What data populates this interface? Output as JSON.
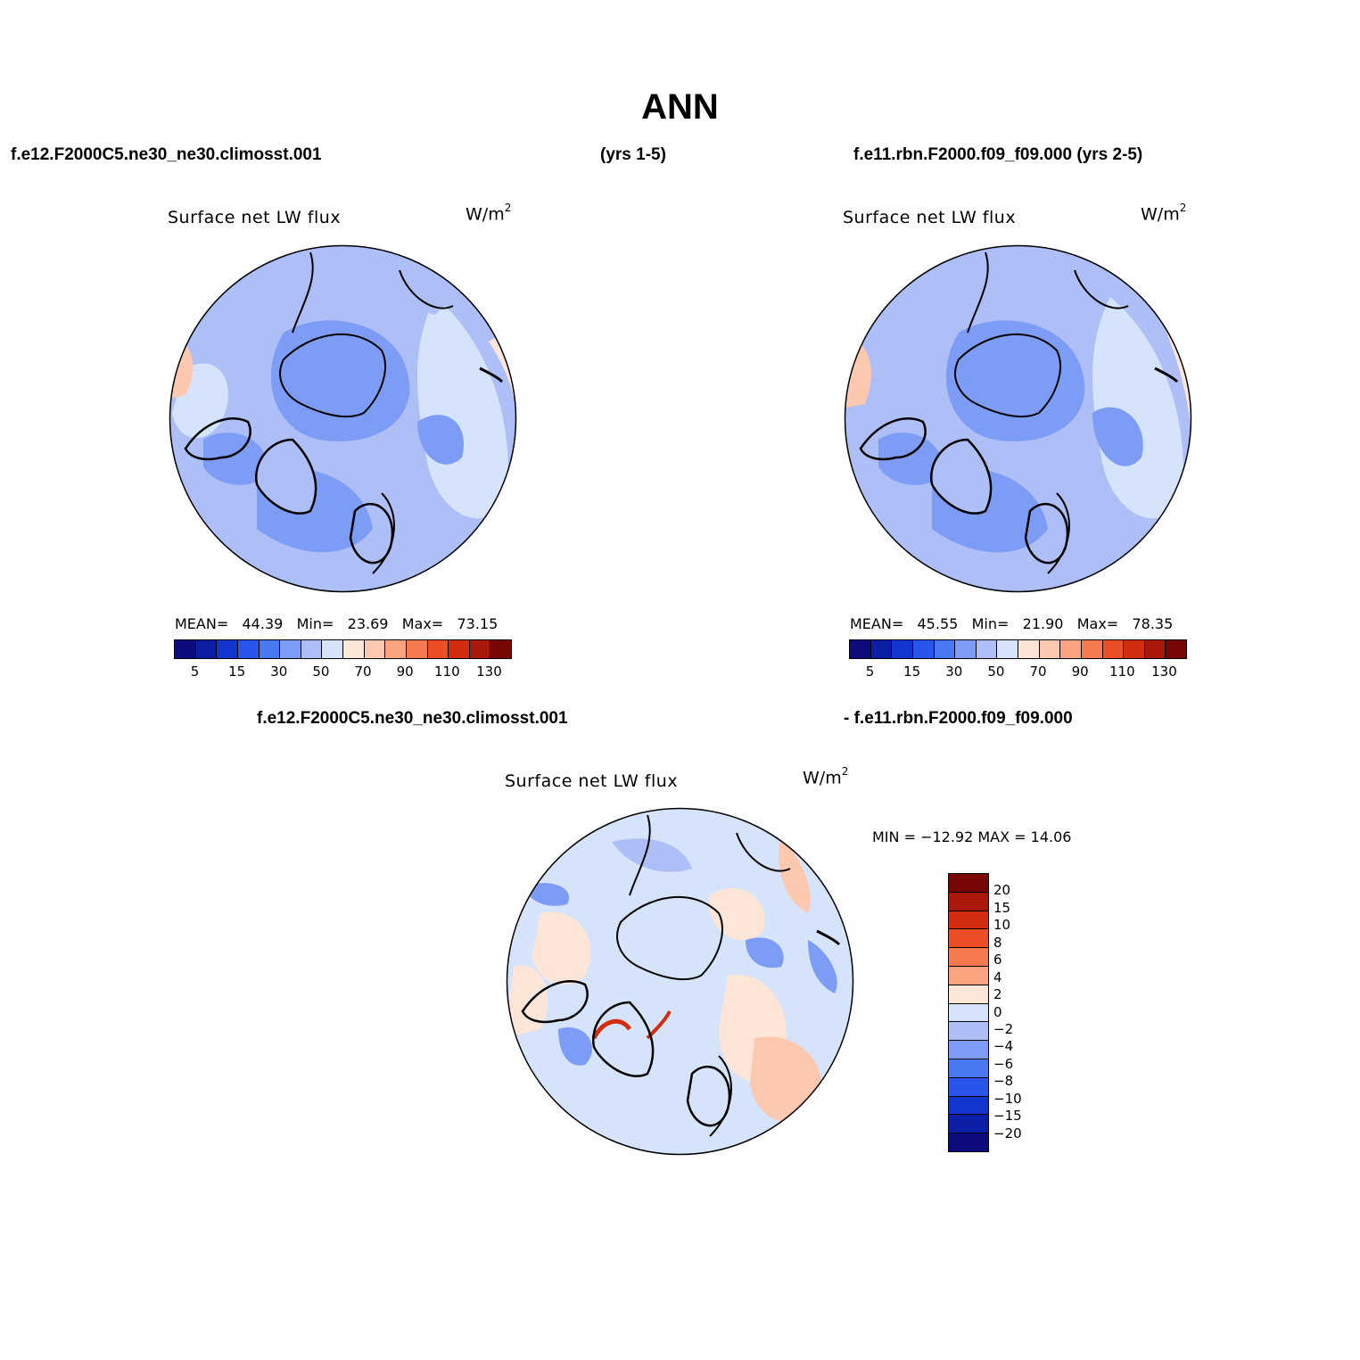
{
  "title": "ANN",
  "headers": {
    "left": "f.e12.F2000C5.ne30_ne30.climosst.001",
    "middle": "(yrs 1-5)",
    "right": "f.e11.rbn.F2000.f09_f09.000 (yrs 2-5)",
    "diff_left": "f.e12.F2000C5.ne30_ne30.climosst.001",
    "diff_right": "- f.e11.rbn.F2000.f09_f09.000"
  },
  "panels": [
    {
      "variable": "Surface net LW flux",
      "units_base": "W/m",
      "units_exp": "2",
      "mean_label": "MEAN=",
      "mean": "44.39",
      "min_label": "Min=",
      "min": "23.69",
      "max_label": "Max=",
      "max": "73.15"
    },
    {
      "variable": "Surface net LW flux",
      "units_base": "W/m",
      "units_exp": "2",
      "mean_label": "MEAN=",
      "mean": "45.55",
      "min_label": "Min=",
      "min": "21.90",
      "max_label": "Max=",
      "max": "78.35"
    }
  ],
  "diff_panel": {
    "variable": "Surface net LW flux",
    "units_base": "W/m",
    "units_exp": "2",
    "minmax_text": "MIN = −12.92 MAX =  14.06"
  },
  "colorbar_abs": {
    "colors": [
      "#0c0c7e",
      "#0d1ea6",
      "#1235d0",
      "#2a55ec",
      "#4a77f2",
      "#7d9cf5",
      "#aebff7",
      "#d6e4fb",
      "#fde6d8",
      "#fcc8b0",
      "#fba47f",
      "#f67a4f",
      "#ec4f26",
      "#d22d0e",
      "#a9180a",
      "#7a0606"
    ],
    "tick_labels": [
      "5",
      "15",
      "30",
      "50",
      "70",
      "90",
      "110",
      "130"
    ]
  },
  "colorbar_diff": {
    "colors": [
      "#7a0606",
      "#a9180a",
      "#d22d0e",
      "#ec4f26",
      "#f67a4f",
      "#fba47f",
      "#fde6d8",
      "#d6e4fb",
      "#aebff7",
      "#7d9cf5",
      "#4a77f2",
      "#2a55ec",
      "#1235d0",
      "#0d1ea6",
      "#0c0c7e"
    ],
    "tick_labels": [
      "20",
      "15",
      "10",
      "8",
      "6",
      "4",
      "2",
      "0",
      "−2",
      "−4",
      "−6",
      "−8",
      "−10",
      "−15",
      "−20"
    ]
  }
}
